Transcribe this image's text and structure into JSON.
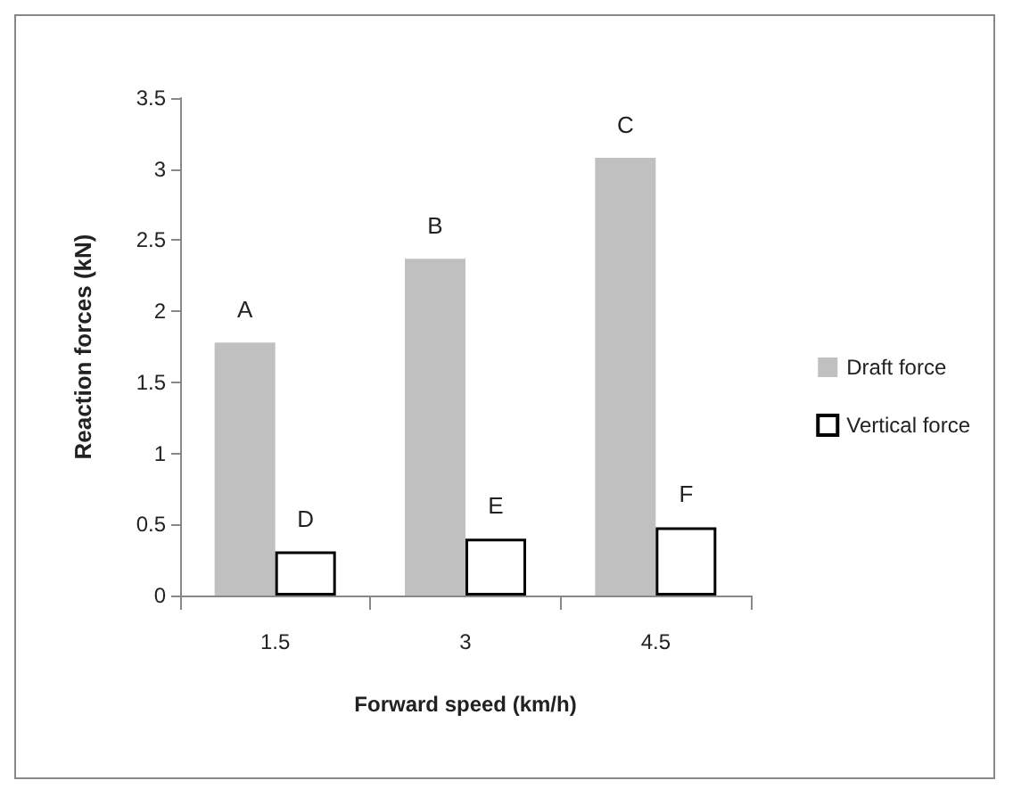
{
  "chart_data": {
    "type": "bar",
    "xlabel": "Forward speed (km/h)",
    "ylabel": "Reaction forces (kN)",
    "categories": [
      "1.5",
      "3",
      "4.5"
    ],
    "series": [
      {
        "name": "Draft force",
        "color": "#c0c0c0",
        "values": [
          1.78,
          2.37,
          3.08
        ],
        "value_labels": [
          "A",
          "B",
          "C"
        ]
      },
      {
        "name": "Vertical force",
        "color": "#ffffff",
        "values": [
          0.31,
          0.4,
          0.48
        ],
        "value_labels": [
          "D",
          "E",
          "F"
        ]
      }
    ],
    "ylim": [
      0,
      3.5
    ],
    "yticks": [
      0,
      0.5,
      1,
      1.5,
      2,
      2.5,
      3,
      3.5
    ],
    "grid": false,
    "legend": "right"
  }
}
